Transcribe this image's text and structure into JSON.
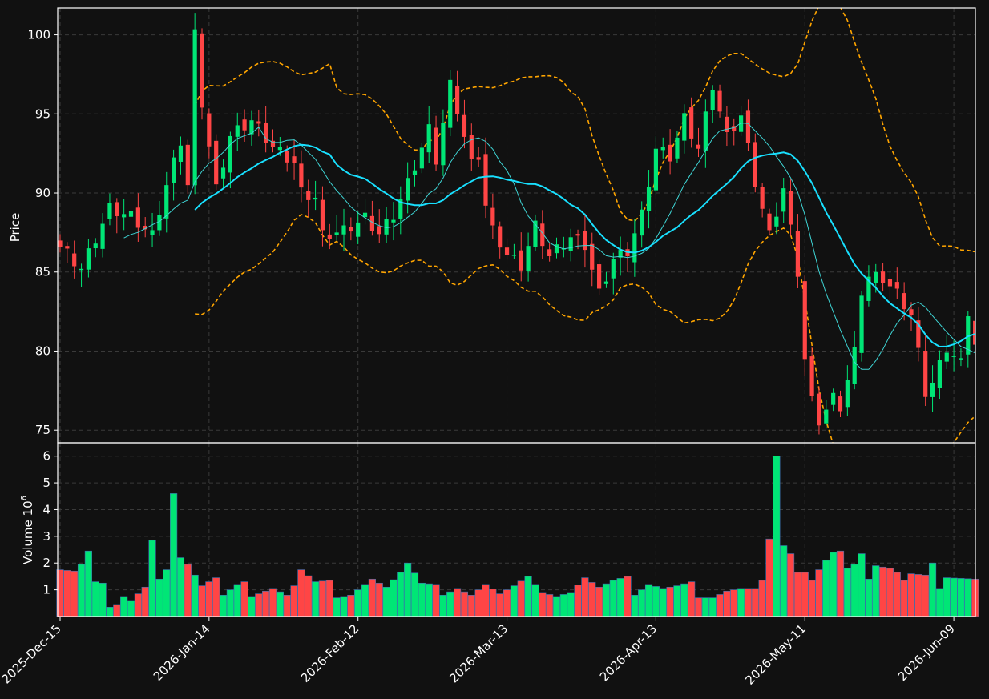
{
  "chart_data": {
    "type": "candlestick",
    "colors": {
      "background": "#111111",
      "up": "#00e676",
      "down": "#ff4545",
      "ma_long": "#18e0ff",
      "ma_short": "#3fd6d6",
      "bollinger": "#ffa500",
      "grid": "#3a3a3a",
      "text": "#ffffff"
    },
    "price_panel": {
      "ylabel": "Price",
      "ylim": [
        74.2,
        101.7
      ],
      "yticks": [
        75,
        80,
        85,
        90,
        95,
        100
      ],
      "grid": true
    },
    "volume_panel": {
      "ylabel": "Volume  10",
      "ylabel_exponent": "6",
      "ylim": [
        0,
        6.5
      ],
      "yticks": [
        1,
        2,
        3,
        4,
        5,
        6
      ],
      "grid": true
    },
    "xticks": [
      {
        "index": 0,
        "label": "2025-Dec-15"
      },
      {
        "index": 21,
        "label": "2026-Jan-14"
      },
      {
        "index": 42,
        "label": "2026-Feb-12"
      },
      {
        "index": 63,
        "label": "2026-Mar-13"
      },
      {
        "index": 84,
        "label": "2026-Apr-13"
      },
      {
        "index": 105,
        "label": "2026-May-11"
      },
      {
        "index": 126,
        "label": "2026-Jun-09"
      }
    ],
    "series_count": 130,
    "anchors": {
      "close": [
        [
          0,
          86.6
        ],
        [
          3,
          85.2
        ],
        [
          5,
          87.1
        ],
        [
          7,
          89.0
        ],
        [
          10,
          88.5
        ],
        [
          13,
          87.3
        ],
        [
          15,
          90.5
        ],
        [
          17,
          93.3
        ],
        [
          18,
          90.5
        ],
        [
          19,
          100.0
        ],
        [
          20,
          95.7
        ],
        [
          22,
          90.2
        ],
        [
          24,
          93.6
        ],
        [
          27,
          94.6
        ],
        [
          30,
          92.9
        ],
        [
          33,
          91.9
        ],
        [
          34,
          90.0
        ],
        [
          36,
          89.7
        ],
        [
          37,
          87.3
        ],
        [
          40,
          87.6
        ],
        [
          43,
          88.4
        ],
        [
          45,
          87.4
        ],
        [
          47,
          88.6
        ],
        [
          49,
          90.6
        ],
        [
          52,
          94.0
        ],
        [
          53,
          92.1
        ],
        [
          55,
          96.8
        ],
        [
          56,
          95.3
        ],
        [
          58,
          91.8
        ],
        [
          59,
          92.4
        ],
        [
          60,
          89.2
        ],
        [
          61,
          87.6
        ],
        [
          63,
          86.1
        ],
        [
          65,
          85.4
        ],
        [
          67,
          87.9
        ],
        [
          69,
          86.0
        ],
        [
          72,
          87.2
        ],
        [
          74,
          86.7
        ],
        [
          76,
          83.6
        ],
        [
          78,
          85.8
        ],
        [
          80,
          86.3
        ],
        [
          82,
          88.6
        ],
        [
          84,
          92.8
        ],
        [
          86,
          92.3
        ],
        [
          88,
          94.7
        ],
        [
          90,
          92.8
        ],
        [
          92,
          96.8
        ],
        [
          94,
          93.5
        ],
        [
          96,
          94.9
        ],
        [
          98,
          90.7
        ],
        [
          100,
          87.3
        ],
        [
          102,
          90.3
        ],
        [
          104,
          85.0
        ],
        [
          105,
          79.5
        ],
        [
          106,
          76.8
        ],
        [
          107,
          75.6
        ],
        [
          109,
          77.0
        ],
        [
          110,
          76.5
        ],
        [
          112,
          79.9
        ],
        [
          113,
          83.8
        ],
        [
          114,
          84.7
        ],
        [
          116,
          84.6
        ],
        [
          118,
          83.6
        ],
        [
          120,
          82.3
        ],
        [
          122,
          77.4
        ],
        [
          123,
          78.0
        ],
        [
          125,
          80.2
        ],
        [
          127,
          79.2
        ],
        [
          128,
          82.5
        ],
        [
          129,
          80.4
        ]
      ],
      "volume": [
        [
          0,
          1.75
        ],
        [
          2,
          1.7
        ],
        [
          3,
          1.95
        ],
        [
          4,
          2.45
        ],
        [
          5,
          1.3
        ],
        [
          6,
          1.25
        ],
        [
          7,
          0.35
        ],
        [
          8,
          0.45
        ],
        [
          9,
          0.75
        ],
        [
          10,
          0.6
        ],
        [
          12,
          1.1
        ],
        [
          13,
          2.85
        ],
        [
          14,
          1.4
        ],
        [
          15,
          1.75
        ],
        [
          16,
          4.6
        ],
        [
          17,
          2.2
        ],
        [
          18,
          1.95
        ],
        [
          19,
          1.55
        ],
        [
          20,
          1.15
        ],
        [
          22,
          1.45
        ],
        [
          23,
          0.8
        ],
        [
          25,
          1.2
        ],
        [
          26,
          1.3
        ],
        [
          27,
          0.75
        ],
        [
          30,
          1.05
        ],
        [
          32,
          0.8
        ],
        [
          33,
          1.15
        ],
        [
          34,
          1.75
        ],
        [
          36,
          1.3
        ],
        [
          38,
          1.35
        ],
        [
          39,
          0.7
        ],
        [
          41,
          0.8
        ],
        [
          44,
          1.4
        ],
        [
          46,
          1.1
        ],
        [
          48,
          1.65
        ],
        [
          49,
          2.0
        ],
        [
          51,
          1.25
        ],
        [
          53,
          1.2
        ],
        [
          54,
          0.8
        ],
        [
          56,
          1.05
        ],
        [
          58,
          0.8
        ],
        [
          60,
          1.2
        ],
        [
          62,
          0.85
        ],
        [
          64,
          1.15
        ],
        [
          66,
          1.5
        ],
        [
          68,
          0.9
        ],
        [
          70,
          0.75
        ],
        [
          72,
          0.9
        ],
        [
          74,
          1.45
        ],
        [
          76,
          1.1
        ],
        [
          78,
          1.35
        ],
        [
          80,
          1.5
        ],
        [
          81,
          0.8
        ],
        [
          83,
          1.2
        ],
        [
          85,
          1.05
        ],
        [
          87,
          1.15
        ],
        [
          89,
          1.3
        ],
        [
          90,
          0.7
        ],
        [
          92,
          0.7
        ],
        [
          94,
          0.95
        ],
        [
          96,
          1.05
        ],
        [
          98,
          1.05
        ],
        [
          99,
          1.35
        ],
        [
          100,
          2.9
        ],
        [
          101,
          6.0
        ],
        [
          102,
          2.65
        ],
        [
          103,
          2.35
        ],
        [
          104,
          1.65
        ],
        [
          105,
          1.65
        ],
        [
          106,
          1.35
        ],
        [
          107,
          1.75
        ],
        [
          108,
          2.1
        ],
        [
          109,
          2.4
        ],
        [
          110,
          2.45
        ],
        [
          111,
          1.8
        ],
        [
          112,
          1.95
        ],
        [
          113,
          2.35
        ],
        [
          114,
          1.4
        ],
        [
          115,
          1.9
        ],
        [
          117,
          1.8
        ],
        [
          118,
          1.65
        ],
        [
          119,
          1.35
        ],
        [
          120,
          1.6
        ],
        [
          122,
          1.55
        ],
        [
          123,
          2.0
        ],
        [
          124,
          1.05
        ],
        [
          125,
          1.45
        ],
        [
          129,
          1.4
        ]
      ]
    }
  }
}
